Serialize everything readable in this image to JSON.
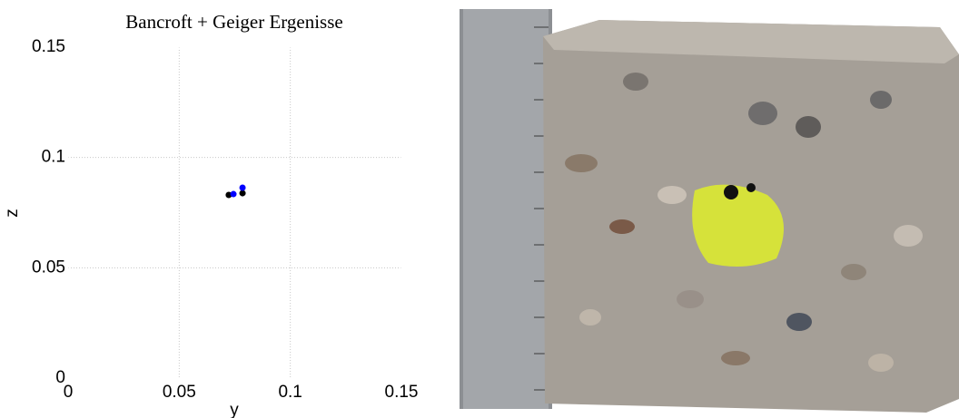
{
  "chart_data": {
    "type": "scatter",
    "title": "Bancroft + Geiger Ergenisse",
    "x_label": "y",
    "y_label": "z",
    "xlim": [
      0,
      0.15
    ],
    "xticks": [
      0,
      0.05,
      0.1,
      0.15
    ],
    "ylim": [
      0,
      0.15
    ],
    "yticks": [
      0,
      0.05,
      0.1,
      0.15
    ],
    "grid": true,
    "series": [
      {
        "color": "#000000",
        "x": [
          0.0723,
          0.0785
        ],
        "values": [
          0.083,
          0.0838
        ]
      },
      {
        "color": "#0000ff",
        "x": [
          0.0744,
          0.0785
        ],
        "values": [
          0.0834,
          0.0863
        ]
      }
    ]
  }
}
